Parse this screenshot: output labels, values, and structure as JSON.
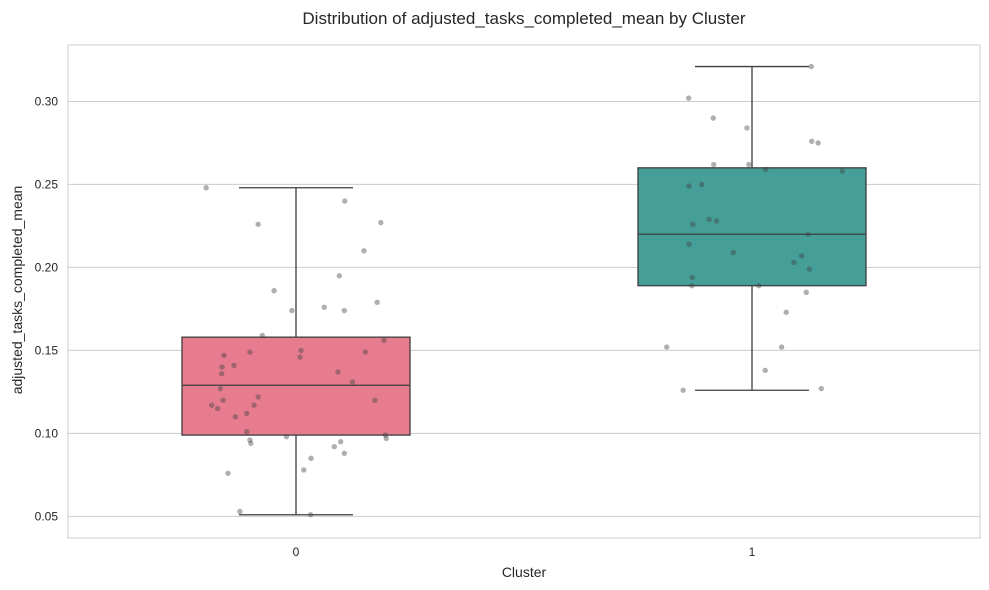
{
  "chart_data": {
    "type": "box",
    "title": "Distribution of adjusted_tasks_completed_mean by Cluster",
    "xlabel": "Cluster",
    "ylabel": "adjusted_tasks_completed_mean",
    "categories": [
      "0",
      "1"
    ],
    "ylim": [
      0.037,
      0.334
    ],
    "yticks": [
      0.05,
      0.1,
      0.15,
      0.2,
      0.25,
      0.3
    ],
    "ytick_labels": [
      "0.05",
      "0.10",
      "0.15",
      "0.20",
      "0.25",
      "0.30"
    ],
    "grid": "horizontal",
    "boxes": [
      {
        "category": "0",
        "color": "#e77c8e",
        "whisker_low": 0.051,
        "q1": 0.099,
        "median": 0.129,
        "q3": 0.158,
        "whisker_high": 0.248
      },
      {
        "category": "1",
        "color": "#469e98",
        "whisker_low": 0.126,
        "q1": 0.189,
        "median": 0.22,
        "q3": 0.26,
        "whisker_high": 0.321
      }
    ],
    "points": [
      {
        "cat": 0,
        "dx": -0.197,
        "y": 0.248
      },
      {
        "cat": 0,
        "dx": -0.083,
        "y": 0.226
      },
      {
        "cat": 0,
        "dx": 0.107,
        "y": 0.24
      },
      {
        "cat": 0,
        "dx": 0.186,
        "y": 0.227
      },
      {
        "cat": 0,
        "dx": 0.149,
        "y": 0.21
      },
      {
        "cat": 0,
        "dx": 0.095,
        "y": 0.195
      },
      {
        "cat": 0,
        "dx": -0.048,
        "y": 0.186
      },
      {
        "cat": 0,
        "dx": 0.062,
        "y": 0.176
      },
      {
        "cat": 0,
        "dx": -0.009,
        "y": 0.174
      },
      {
        "cat": 0,
        "dx": 0.106,
        "y": 0.174
      },
      {
        "cat": 0,
        "dx": 0.178,
        "y": 0.179
      },
      {
        "cat": 0,
        "dx": -0.074,
        "y": 0.159
      },
      {
        "cat": 0,
        "dx": 0.193,
        "y": 0.156
      },
      {
        "cat": 0,
        "dx": -0.101,
        "y": 0.149
      },
      {
        "cat": 0,
        "dx": -0.158,
        "y": 0.147
      },
      {
        "cat": 0,
        "dx": 0.011,
        "y": 0.15
      },
      {
        "cat": 0,
        "dx": 0.009,
        "y": 0.146
      },
      {
        "cat": 0,
        "dx": 0.152,
        "y": 0.149
      },
      {
        "cat": 0,
        "dx": -0.136,
        "y": 0.141
      },
      {
        "cat": 0,
        "dx": -0.162,
        "y": 0.14
      },
      {
        "cat": 0,
        "dx": -0.163,
        "y": 0.136
      },
      {
        "cat": 0,
        "dx": 0.092,
        "y": 0.137
      },
      {
        "cat": 0,
        "dx": 0.124,
        "y": 0.131
      },
      {
        "cat": 0,
        "dx": -0.166,
        "y": 0.127
      },
      {
        "cat": 0,
        "dx": -0.083,
        "y": 0.122
      },
      {
        "cat": 0,
        "dx": -0.16,
        "y": 0.12
      },
      {
        "cat": 0,
        "dx": -0.185,
        "y": 0.117
      },
      {
        "cat": 0,
        "dx": -0.092,
        "y": 0.117
      },
      {
        "cat": 0,
        "dx": 0.173,
        "y": 0.12
      },
      {
        "cat": 0,
        "dx": -0.172,
        "y": 0.115
      },
      {
        "cat": 0,
        "dx": -0.108,
        "y": 0.112
      },
      {
        "cat": 0,
        "dx": -0.133,
        "y": 0.11
      },
      {
        "cat": 0,
        "dx": -0.108,
        "y": 0.101
      },
      {
        "cat": 0,
        "dx": -0.021,
        "y": 0.098
      },
      {
        "cat": 0,
        "dx": 0.196,
        "y": 0.099
      },
      {
        "cat": 0,
        "dx": 0.198,
        "y": 0.097
      },
      {
        "cat": 0,
        "dx": -0.101,
        "y": 0.096
      },
      {
        "cat": 0,
        "dx": -0.099,
        "y": 0.094
      },
      {
        "cat": 0,
        "dx": 0.098,
        "y": 0.095
      },
      {
        "cat": 0,
        "dx": 0.084,
        "y": 0.092
      },
      {
        "cat": 0,
        "dx": 0.106,
        "y": 0.088
      },
      {
        "cat": 0,
        "dx": 0.033,
        "y": 0.085
      },
      {
        "cat": 0,
        "dx": 0.017,
        "y": 0.078
      },
      {
        "cat": 0,
        "dx": -0.149,
        "y": 0.076
      },
      {
        "cat": 0,
        "dx": -0.123,
        "y": 0.053
      },
      {
        "cat": 0,
        "dx": 0.032,
        "y": 0.051
      },
      {
        "cat": 1,
        "dx": 0.13,
        "y": 0.321
      },
      {
        "cat": 1,
        "dx": -0.139,
        "y": 0.302
      },
      {
        "cat": 1,
        "dx": -0.085,
        "y": 0.29
      },
      {
        "cat": 1,
        "dx": -0.011,
        "y": 0.284
      },
      {
        "cat": 1,
        "dx": 0.131,
        "y": 0.276
      },
      {
        "cat": 1,
        "dx": 0.145,
        "y": 0.275
      },
      {
        "cat": 1,
        "dx": -0.084,
        "y": 0.262
      },
      {
        "cat": 1,
        "dx": -0.007,
        "y": 0.262
      },
      {
        "cat": 1,
        "dx": 0.03,
        "y": 0.259
      },
      {
        "cat": 1,
        "dx": 0.198,
        "y": 0.258
      },
      {
        "cat": 1,
        "dx": -0.138,
        "y": 0.249
      },
      {
        "cat": 1,
        "dx": -0.11,
        "y": 0.25
      },
      {
        "cat": 1,
        "dx": -0.094,
        "y": 0.229
      },
      {
        "cat": 1,
        "dx": -0.078,
        "y": 0.228
      },
      {
        "cat": 1,
        "dx": -0.13,
        "y": 0.226
      },
      {
        "cat": 1,
        "dx": 0.123,
        "y": 0.22
      },
      {
        "cat": 1,
        "dx": -0.138,
        "y": 0.214
      },
      {
        "cat": 1,
        "dx": -0.041,
        "y": 0.209
      },
      {
        "cat": 1,
        "dx": 0.109,
        "y": 0.207
      },
      {
        "cat": 1,
        "dx": 0.092,
        "y": 0.203
      },
      {
        "cat": 1,
        "dx": 0.126,
        "y": 0.199
      },
      {
        "cat": 1,
        "dx": -0.131,
        "y": 0.194
      },
      {
        "cat": 1,
        "dx": -0.132,
        "y": 0.189
      },
      {
        "cat": 1,
        "dx": 0.015,
        "y": 0.189
      },
      {
        "cat": 1,
        "dx": 0.119,
        "y": 0.185
      },
      {
        "cat": 1,
        "dx": 0.075,
        "y": 0.173
      },
      {
        "cat": 1,
        "dx": -0.187,
        "y": 0.152
      },
      {
        "cat": 1,
        "dx": 0.065,
        "y": 0.152
      },
      {
        "cat": 1,
        "dx": 0.029,
        "y": 0.138
      },
      {
        "cat": 1,
        "dx": -0.151,
        "y": 0.126
      },
      {
        "cat": 1,
        "dx": 0.152,
        "y": 0.127
      }
    ]
  }
}
